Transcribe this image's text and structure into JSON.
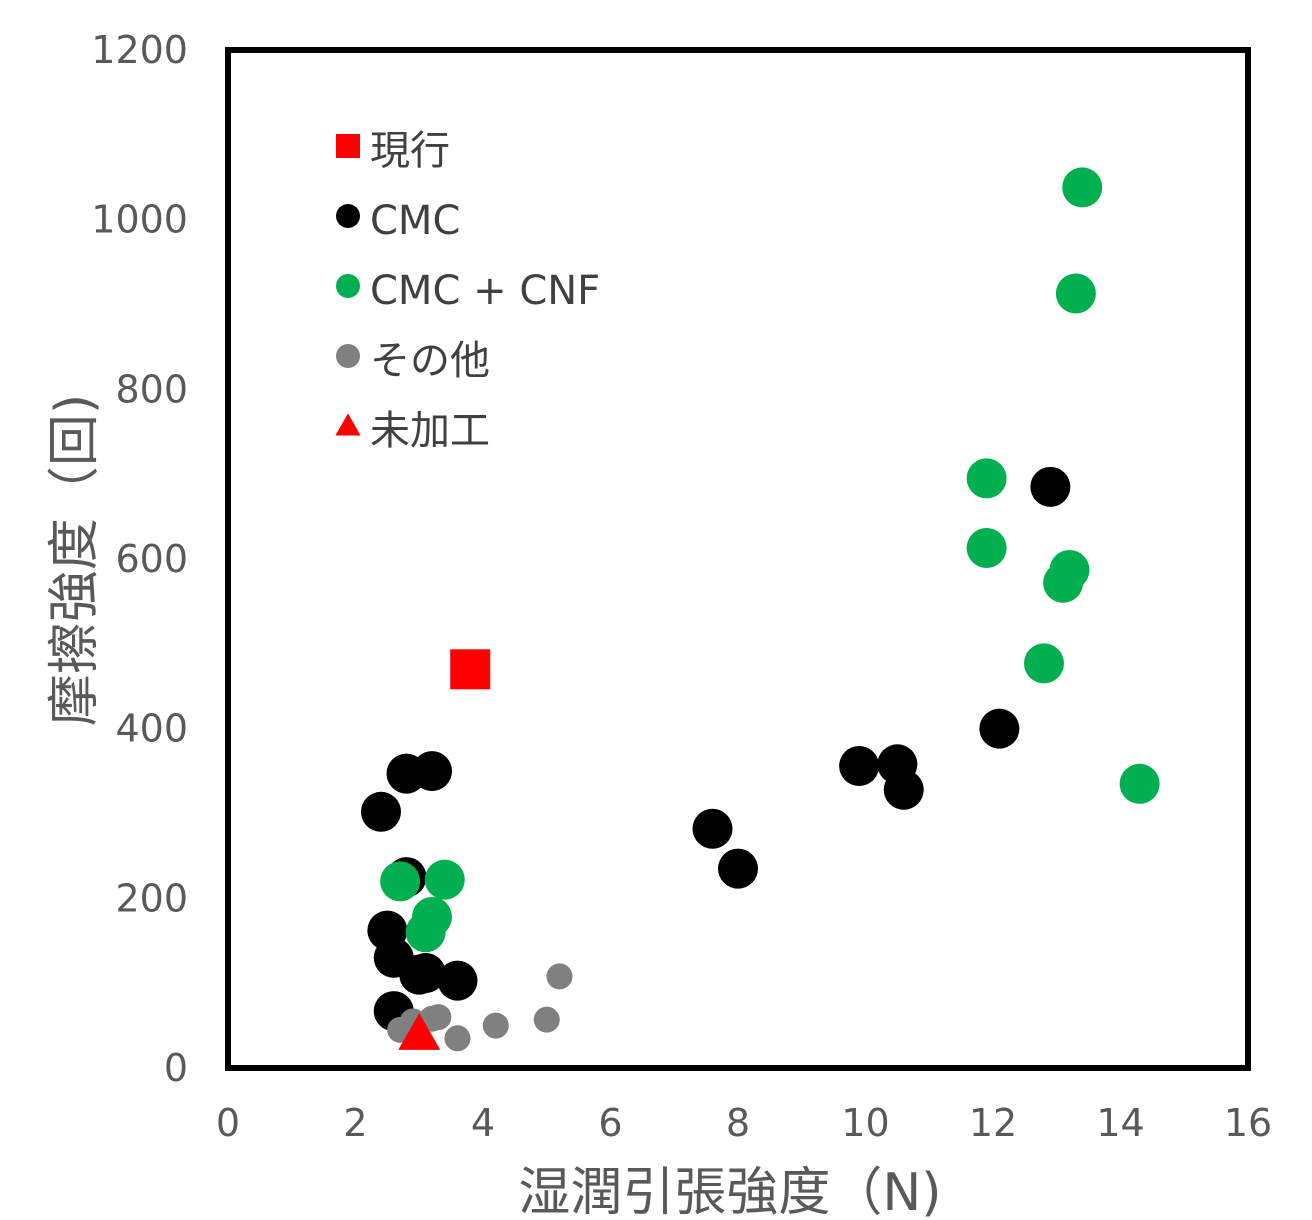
{
  "chart_data": {
    "type": "scatter",
    "xlabel": "湿潤引張強度（N)",
    "ylabel": "摩擦強度（回)",
    "xlim": [
      0,
      16
    ],
    "ylim": [
      0,
      1200
    ],
    "x_ticks": [
      "0",
      "2",
      "4",
      "6",
      "8",
      "10",
      "12",
      "14",
      "16"
    ],
    "y_ticks": [
      "0",
      "200",
      "400",
      "600",
      "800",
      "1000",
      "1200"
    ],
    "grid": false,
    "legend_position": "top-left",
    "series": [
      {
        "name": "現行",
        "marker": "square",
        "color": "#ff0000",
        "points": [
          [
            3.8,
            470
          ]
        ]
      },
      {
        "name": "CMC",
        "marker": "circle",
        "color": "#000000",
        "points": [
          [
            2.4,
            302
          ],
          [
            2.8,
            347
          ],
          [
            3.2,
            350
          ],
          [
            2.8,
            225
          ],
          [
            2.5,
            162
          ],
          [
            2.6,
            130
          ],
          [
            3.0,
            110
          ],
          [
            3.1,
            112
          ],
          [
            3.6,
            103
          ],
          [
            2.6,
            67
          ],
          [
            7.6,
            282
          ],
          [
            8.0,
            235
          ],
          [
            9.9,
            356
          ],
          [
            10.5,
            358
          ],
          [
            10.6,
            328
          ],
          [
            12.1,
            400
          ],
          [
            12.9,
            685
          ]
        ]
      },
      {
        "name": "CMC + CNF",
        "marker": "circle",
        "color": "#00b050",
        "points": [
          [
            2.7,
            220
          ],
          [
            3.4,
            222
          ],
          [
            3.2,
            178
          ],
          [
            3.1,
            160
          ],
          [
            11.9,
            695
          ],
          [
            11.9,
            613
          ],
          [
            13.2,
            587
          ],
          [
            13.1,
            572
          ],
          [
            12.8,
            477
          ],
          [
            14.3,
            335
          ],
          [
            13.3,
            913
          ],
          [
            13.4,
            1038
          ]
        ]
      },
      {
        "name": "その他",
        "marker": "circle",
        "color": "#808080",
        "points": [
          [
            2.7,
            45
          ],
          [
            2.9,
            55
          ],
          [
            3.2,
            58
          ],
          [
            3.3,
            60
          ],
          [
            3.6,
            35
          ],
          [
            4.2,
            50
          ],
          [
            5.0,
            57
          ],
          [
            5.2,
            108
          ]
        ]
      },
      {
        "name": "未加工",
        "marker": "triangle",
        "color": "#ff0000",
        "points": [
          [
            3.0,
            40
          ]
        ]
      }
    ]
  }
}
